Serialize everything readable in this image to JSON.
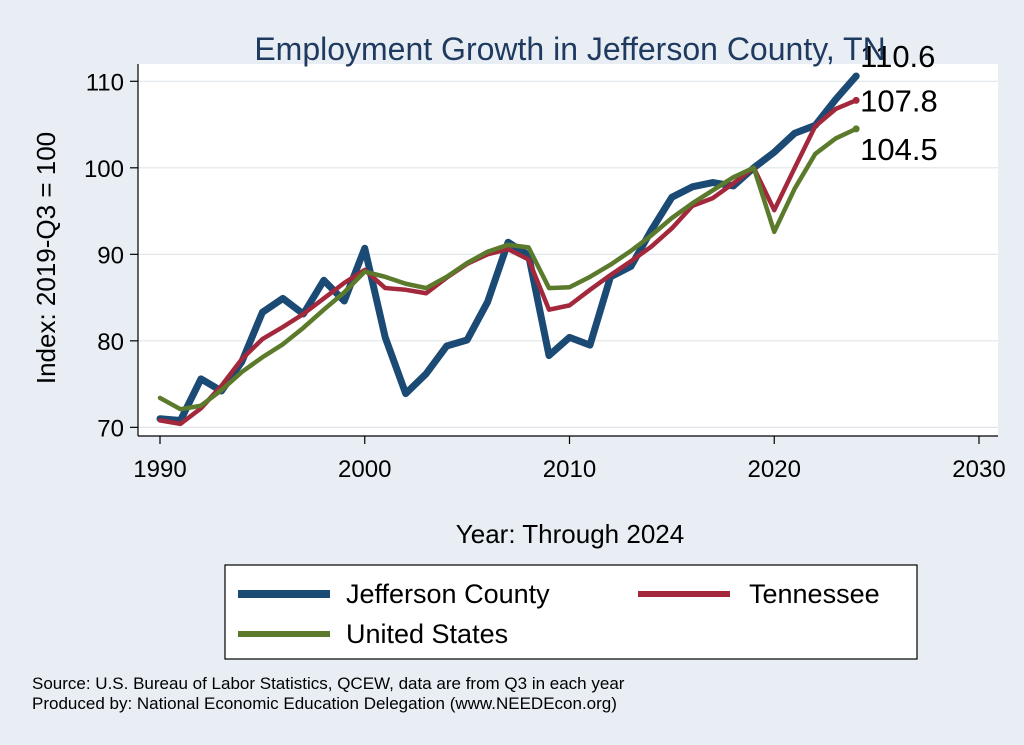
{
  "chart_data": {
    "type": "line",
    "title": "Employment Growth in Jefferson County, TN",
    "xlabel": "Year: Through 2024",
    "ylabel": "Index: 2019-Q3 = 100",
    "xlim": [
      1990,
      2030
    ],
    "ylim": [
      69,
      112
    ],
    "x_ticks": [
      1990,
      2000,
      2010,
      2020,
      2030
    ],
    "y_ticks": [
      70,
      80,
      90,
      100,
      110
    ],
    "grid": true,
    "legend_position": "bottom",
    "x": [
      1990,
      1991,
      1992,
      1993,
      1994,
      1995,
      1996,
      1997,
      1998,
      1999,
      2000,
      2001,
      2002,
      2003,
      2004,
      2005,
      2006,
      2007,
      2008,
      2009,
      2010,
      2011,
      2012,
      2013,
      2014,
      2015,
      2016,
      2017,
      2018,
      2019,
      2020,
      2021,
      2022,
      2023,
      2024
    ],
    "series": [
      {
        "name": "Jefferson  County",
        "color": "#1b4a75",
        "width": 7,
        "end_label": "110.6",
        "values": [
          71.0,
          70.8,
          75.6,
          74.2,
          77.6,
          83.3,
          84.9,
          83.1,
          87.0,
          84.6,
          90.7,
          80.4,
          73.9,
          76.2,
          79.4,
          80.1,
          84.5,
          91.4,
          89.9,
          78.3,
          80.4,
          79.5,
          87.4,
          88.6,
          92.8,
          96.6,
          97.8,
          98.3,
          97.9,
          100.0,
          101.8,
          104.0,
          104.9,
          107.9,
          110.6
        ]
      },
      {
        "name": "Tennessee",
        "color": "#a3283c",
        "width": 4.5,
        "end_label": "107.8",
        "values": [
          70.8,
          70.4,
          72.2,
          74.8,
          77.9,
          80.2,
          81.6,
          83.1,
          84.9,
          86.7,
          88.2,
          86.1,
          85.9,
          85.5,
          87.3,
          88.9,
          90.0,
          90.6,
          89.4,
          83.6,
          84.1,
          85.9,
          87.6,
          89.2,
          90.9,
          93.0,
          95.6,
          96.5,
          98.2,
          100.0,
          95.1,
          100.0,
          104.8,
          106.8,
          107.8
        ]
      },
      {
        "name": "United States",
        "color": "#5b7a2c",
        "width": 4.5,
        "end_label": "104.5",
        "values": [
          73.4,
          72.1,
          72.5,
          74.3,
          76.4,
          78.1,
          79.6,
          81.5,
          83.6,
          85.6,
          88.0,
          87.4,
          86.6,
          86.1,
          87.4,
          89.0,
          90.3,
          91.1,
          90.8,
          86.1,
          86.2,
          87.4,
          88.8,
          90.4,
          92.2,
          94.2,
          95.9,
          97.4,
          98.9,
          100.0,
          92.6,
          97.6,
          101.6,
          103.4,
          104.5
        ]
      }
    ]
  },
  "notes": {
    "source": "Source: U.S. Bureau of Labor Statistics, QCEW, data are from Q3 in each year",
    "produced_by": "Produced by: National Economic Education Delegation (www.NEEDEcon.org)"
  }
}
